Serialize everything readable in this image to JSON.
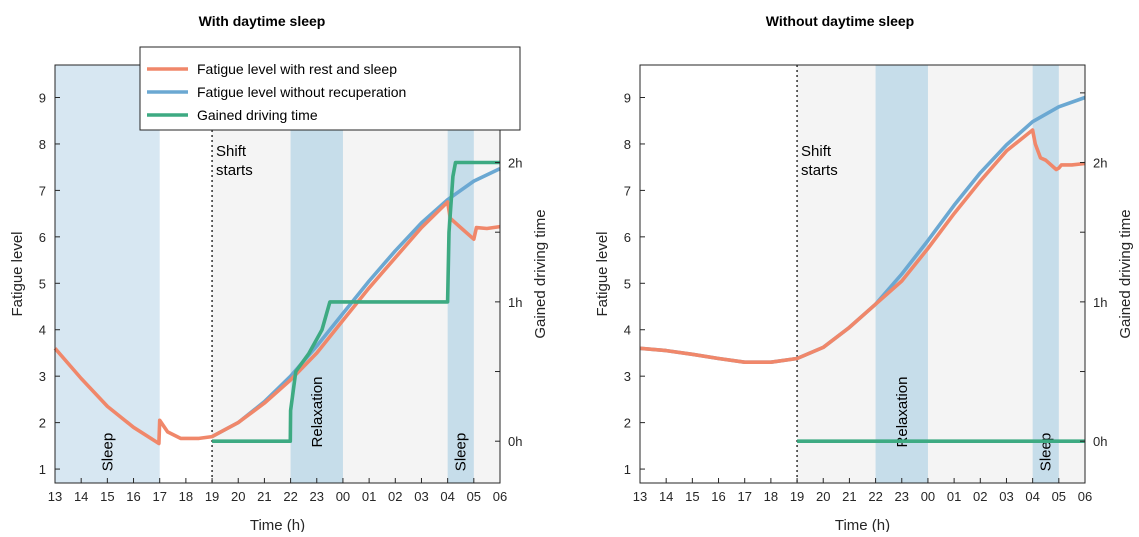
{
  "x_ticks": [
    "13",
    "14",
    "15",
    "16",
    "17",
    "18",
    "19",
    "20",
    "21",
    "22",
    "23",
    "00",
    "01",
    "02",
    "03",
    "04",
    "05",
    "06"
  ],
  "y_ticks": [
    1,
    2,
    3,
    4,
    5,
    6,
    7,
    8,
    9
  ],
  "y2_ticks": [
    "0h",
    "1h",
    "2h"
  ],
  "xlabel": "Time (h)",
  "ylabel": "Fatigue level",
  "y2label": "Gained driving time",
  "shift_label": [
    "Shift",
    "starts"
  ],
  "legend": [
    {
      "label": "Fatigue level with rest and sleep",
      "color": "#F0876A"
    },
    {
      "label": "Fatigue level without recuperation",
      "color": "#6BA8D2"
    },
    {
      "label": "Gained driving time",
      "color": "#3DAA82"
    }
  ],
  "colors": {
    "band_sleep": "#D7E7F2",
    "band_relax": "#C6DDEA",
    "shift_bg": "#F4F4F4",
    "axis": "#262626"
  },
  "chart_data": [
    {
      "type": "line",
      "title": "With daytime sleep",
      "xlim": [
        13,
        30
      ],
      "ylim": [
        0.7,
        9.7
      ],
      "y2lim": [
        -0.3,
        2.7
      ],
      "shift_start": 19,
      "shift_end": 30,
      "bands": [
        {
          "kind": "sleep",
          "label": "Sleep",
          "x0": 13,
          "x1": 17
        },
        {
          "kind": "relax",
          "label": "Relaxation",
          "x0": 22,
          "x1": 24
        },
        {
          "kind": "relax",
          "label": "Sleep",
          "x0": 28,
          "x1": 29
        }
      ],
      "series": [
        {
          "name": "Fatigue level without recuperation",
          "color": "#6BA8D2",
          "x": [
            19,
            20,
            21,
            22,
            23,
            24,
            25,
            26,
            27,
            28,
            29,
            30
          ],
          "y": [
            1.7,
            2.0,
            2.45,
            3.0,
            3.65,
            4.35,
            5.05,
            5.7,
            6.3,
            6.8,
            7.2,
            7.47
          ]
        },
        {
          "name": "Fatigue level with rest and sleep",
          "color": "#F0876A",
          "x": [
            13,
            14,
            15,
            16,
            16.97,
            17.0,
            17.3,
            17.8,
            18.5,
            19,
            20,
            21,
            22,
            23,
            24,
            25,
            26,
            27,
            28,
            28.1,
            28.5,
            29,
            29.1,
            29.5,
            30
          ],
          "y": [
            3.6,
            2.95,
            2.35,
            1.9,
            1.55,
            2.05,
            1.8,
            1.66,
            1.66,
            1.7,
            2.0,
            2.42,
            2.92,
            3.5,
            4.2,
            4.9,
            5.55,
            6.2,
            6.75,
            6.4,
            6.2,
            5.95,
            6.2,
            6.18,
            6.22
          ]
        },
        {
          "name": "Gained driving time",
          "color": "#3DAA82",
          "x": [
            19,
            21.99,
            22.0,
            22.2,
            22.7,
            23.2,
            23.5,
            24.0,
            26.0,
            27.99,
            28.0,
            28.05,
            28.2,
            28.3,
            30
          ],
          "y": [
            0,
            0,
            0.22,
            0.5,
            0.63,
            0.8,
            1.0,
            1.0,
            1.0,
            1.0,
            1.0,
            1.5,
            1.9,
            2.0,
            2.0
          ]
        }
      ]
    },
    {
      "type": "line",
      "title": "Without daytime sleep",
      "xlim": [
        13,
        30
      ],
      "ylim": [
        0.7,
        9.7
      ],
      "y2lim": [
        -0.3,
        2.7
      ],
      "shift_start": 19,
      "shift_end": 30,
      "bands": [
        {
          "kind": "relax",
          "label": "Relaxation",
          "x0": 22,
          "x1": 24
        },
        {
          "kind": "relax",
          "label": "Sleep",
          "x0": 28,
          "x1": 29
        }
      ],
      "series": [
        {
          "name": "Fatigue level without recuperation",
          "color": "#6BA8D2",
          "x": [
            13,
            14,
            15,
            16,
            17,
            18,
            19,
            20,
            21,
            22,
            23,
            24,
            25,
            26,
            27,
            28,
            29,
            30
          ],
          "y": [
            3.6,
            3.55,
            3.47,
            3.38,
            3.3,
            3.3,
            3.38,
            3.62,
            4.05,
            4.55,
            5.2,
            5.92,
            6.68,
            7.38,
            7.98,
            8.48,
            8.8,
            9.0
          ]
        },
        {
          "name": "Fatigue level with rest and sleep",
          "color": "#F0876A",
          "x": [
            13,
            14,
            15,
            16,
            17,
            18,
            19,
            20,
            21,
            22,
            23,
            24,
            25,
            26,
            27,
            28,
            28.1,
            28.3,
            28.5,
            28.9,
            29,
            29.1,
            29.5,
            30
          ],
          "y": [
            3.6,
            3.55,
            3.47,
            3.38,
            3.3,
            3.3,
            3.38,
            3.62,
            4.05,
            4.55,
            5.05,
            5.75,
            6.5,
            7.2,
            7.85,
            8.3,
            8.0,
            7.7,
            7.65,
            7.45,
            7.48,
            7.55,
            7.55,
            7.58
          ]
        },
        {
          "name": "Gained driving time",
          "color": "#3DAA82",
          "x": [
            19,
            30
          ],
          "y": [
            0,
            0
          ]
        }
      ]
    }
  ]
}
